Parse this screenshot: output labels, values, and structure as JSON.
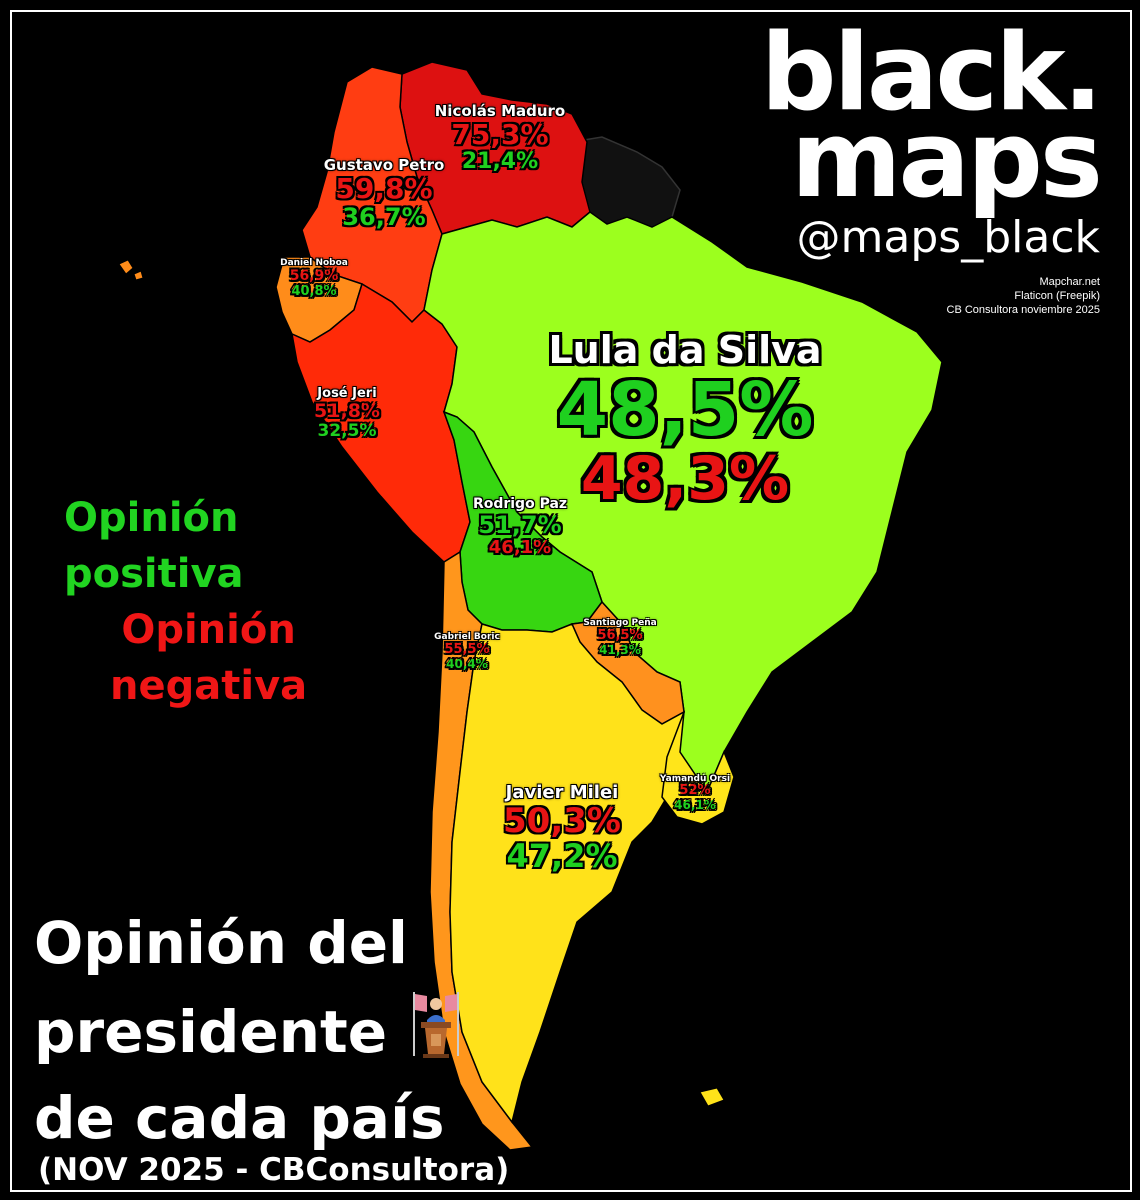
{
  "brand": {
    "line1": "black.",
    "line2": "maps",
    "handle": "@maps_black"
  },
  "credits": [
    "Mapchar.net",
    "Flaticon (Freepik)",
    "CB Consultora noviembre 2025"
  ],
  "legend": {
    "positive": [
      "Opinión",
      "positiva"
    ],
    "negative": [
      "Opinión",
      "negativa"
    ]
  },
  "title": {
    "lines": [
      "Opinión del",
      "presidente",
      "de cada país"
    ],
    "subtitle": "(NOV 2025 - CBConsultora)"
  },
  "colors": {
    "positive_text": "#1fd01f",
    "negative_text": "#e81414",
    "venezuela": "#dd1111",
    "colombia": "#ff3d12",
    "peru": "#ff2a08",
    "ecuador": "#ff8c1a",
    "chile": "#ff961c",
    "paraguay": "#ff911e",
    "bolivia": "#37d611",
    "brazil": "#9cff1e",
    "uruguay": "#ffe51a",
    "argentina": "#ffe21a",
    "guianas": "#111111"
  },
  "presidents": [
    {
      "country": "Venezuela",
      "name": "Nicolás Maduro",
      "negative": "75,3%",
      "positive": "21,4%"
    },
    {
      "country": "Colombia",
      "name": "Gustavo Petro",
      "negative": "59,8%",
      "positive": "36,7%"
    },
    {
      "country": "Ecuador",
      "name": "Daniel Noboa",
      "negative": "56,9%",
      "positive": "40,8%"
    },
    {
      "country": "Perú",
      "name": "José Jeri",
      "negative": "51,8%",
      "positive": "32,5%"
    },
    {
      "country": "Brasil",
      "name": "Lula da Silva",
      "positive": "48,5%",
      "negative": "48,3%"
    },
    {
      "country": "Bolivia",
      "name": "Rodrigo Paz",
      "positive": "51,7%",
      "negative": "46,1%"
    },
    {
      "country": "Paraguay",
      "name": "Santiago Peña",
      "negative": "56,5%",
      "positive": "41,3%"
    },
    {
      "country": "Chile",
      "name": "Gabriel Boric",
      "negative": "55,5%",
      "positive": "40,4%"
    },
    {
      "country": "Uruguay",
      "name": "Yamandú Orsi",
      "negative": "52%",
      "positive": "46,1%"
    },
    {
      "country": "Argentina",
      "name": "Javier Milei",
      "negative": "50,3%",
      "positive": "47,2%"
    }
  ]
}
